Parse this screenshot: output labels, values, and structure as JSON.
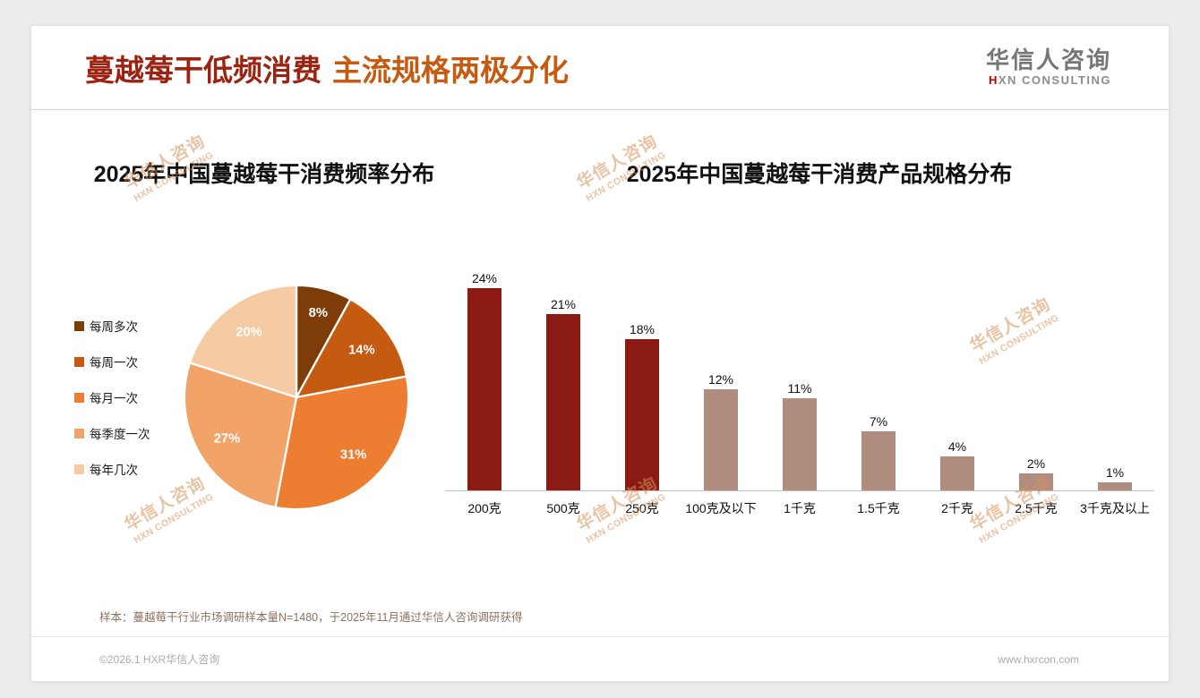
{
  "header": {
    "title_primary": "蔓越莓干低频消费",
    "title_secondary": "主流规格两极分化",
    "logo": {
      "cn": "华信人咨询",
      "en_accent": "H",
      "en_rest": "XN CONSULTING"
    }
  },
  "watermark": {
    "cn": "华信人咨询",
    "en": "HXN CONSULTING"
  },
  "chart_data": [
    {
      "type": "pie",
      "title": "2025年中国蔓越莓干消费频率分布",
      "categories": [
        "每周多次",
        "每周一次",
        "每月一次",
        "每季度一次",
        "每年几次"
      ],
      "values": [
        8,
        14,
        31,
        27,
        20
      ],
      "unit": "%",
      "colors": [
        "#7E3D08",
        "#C55A11",
        "#ED7D31",
        "#F2A368",
        "#F6CBA4"
      ],
      "legend_position": "left",
      "start_angle_deg": 0,
      "direction": "clockwise",
      "data_labels": true
    },
    {
      "type": "bar",
      "title": "2025年中国蔓越莓干消费产品规格分布",
      "categories": [
        "200克",
        "500克",
        "250克",
        "100克及以下",
        "1千克",
        "1.5千克",
        "2千克",
        "2.5千克",
        "3千克及以上"
      ],
      "values": [
        24,
        21,
        18,
        12,
        11,
        7,
        4,
        2,
        1
      ],
      "unit": "%",
      "colors": [
        "#8B1A14",
        "#8B1A14",
        "#8B1A14",
        "#B18D80",
        "#B18D80",
        "#B18D80",
        "#B18D80",
        "#B18D80",
        "#B18D80"
      ],
      "ylim": [
        0,
        25
      ],
      "grid": false,
      "data_labels": true
    }
  ],
  "footnote": "样本：蔓越莓干行业市场调研样本量N=1480，于2025年11月通过华信人咨询调研获得",
  "footer": {
    "left": "©2026.1 HXR华信人咨询",
    "right": "www.hxrcon.com"
  }
}
